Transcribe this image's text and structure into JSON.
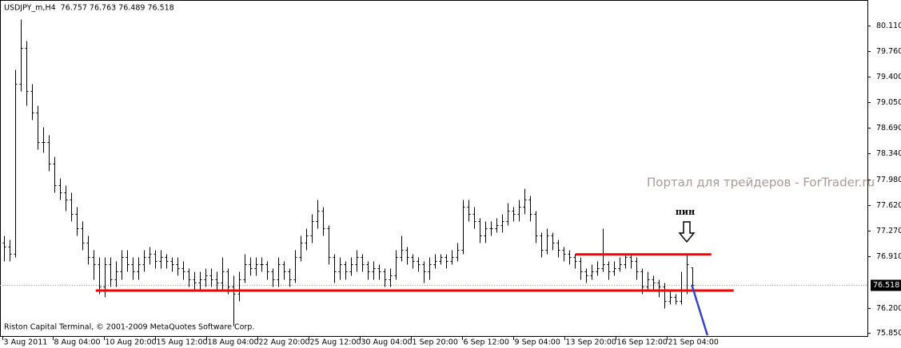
{
  "chart_data": {
    "type": "ohlc",
    "title": "USDJPY_m,H4  76.757 76.763 76.489 76.518",
    "color": "#000000",
    "open": [
      77.1,
      77.05,
      76.95,
      79.3,
      79.8,
      79.2,
      78.9,
      78.5,
      78.5,
      78.2,
      77.9,
      77.8,
      77.7,
      77.5,
      77.3,
      77.1,
      76.9,
      76.8,
      76.5,
      76.8,
      76.6,
      76.7,
      76.9,
      76.8,
      76.7,
      76.8,
      76.9,
      76.95,
      76.85,
      76.9,
      76.85,
      76.8,
      76.75,
      76.7,
      76.6,
      76.55,
      76.6,
      76.65,
      76.6,
      76.55,
      76.7,
      76.5,
      76.4,
      76.6,
      76.8,
      76.75,
      76.8,
      76.8,
      76.7,
      76.6,
      76.8,
      76.7,
      76.6,
      76.9,
      77.1,
      77.2,
      77.4,
      77.55,
      77.3,
      76.9,
      76.7,
      76.8,
      76.7,
      76.8,
      76.9,
      76.8,
      76.7,
      76.75,
      76.7,
      76.6,
      76.65,
      76.9,
      77.0,
      76.9,
      76.85,
      76.8,
      76.7,
      76.8,
      76.85,
      76.9,
      76.85,
      76.9,
      77.0,
      77.6,
      77.5,
      77.4,
      77.2,
      77.3,
      77.3,
      77.35,
      77.4,
      77.55,
      77.5,
      77.6,
      77.7,
      77.5,
      77.2,
      77.0,
      77.2,
      77.1,
      77.0,
      76.95,
      76.9,
      76.85,
      76.7,
      76.65,
      76.7,
      76.75,
      76.8,
      76.7,
      76.75,
      76.8,
      76.9,
      76.85,
      76.7,
      76.5,
      76.6,
      76.55,
      76.5,
      76.3,
      76.35,
      76.3,
      76.45,
      76.757
    ],
    "high": [
      77.2,
      77.15,
      79.5,
      80.2,
      79.9,
      79.3,
      79.0,
      78.7,
      78.6,
      78.3,
      78.0,
      77.9,
      77.8,
      77.6,
      77.4,
      77.2,
      77.0,
      76.9,
      76.9,
      76.9,
      76.85,
      77.0,
      77.0,
      76.9,
      76.9,
      77.0,
      77.05,
      77.0,
      77.0,
      76.95,
      76.9,
      76.9,
      76.85,
      76.75,
      76.7,
      76.7,
      76.75,
      76.75,
      76.7,
      76.9,
      76.75,
      76.65,
      76.7,
      76.95,
      76.9,
      76.9,
      76.9,
      76.85,
      76.75,
      76.9,
      76.85,
      76.75,
      77.0,
      77.2,
      77.3,
      77.5,
      77.7,
      77.6,
      77.35,
      76.95,
      76.9,
      76.85,
      76.9,
      77.0,
      76.95,
      76.85,
      76.85,
      76.8,
      76.75,
      76.75,
      77.0,
      77.2,
      77.05,
      76.95,
      76.9,
      76.85,
      76.9,
      76.95,
      76.95,
      76.95,
      77.0,
      77.1,
      77.7,
      77.7,
      77.6,
      77.45,
      77.4,
      77.4,
      77.45,
      77.5,
      77.65,
      77.6,
      77.7,
      77.85,
      77.75,
      77.55,
      77.25,
      77.3,
      77.25,
      77.15,
      77.05,
      77.0,
      76.95,
      76.9,
      76.75,
      76.8,
      76.85,
      77.3,
      76.85,
      76.85,
      76.9,
      76.95,
      76.95,
      76.9,
      76.75,
      76.7,
      76.65,
      76.6,
      76.55,
      76.45,
      76.4,
      76.7,
      76.95,
      76.763
    ],
    "low": [
      76.85,
      76.85,
      76.9,
      79.2,
      79.0,
      78.8,
      78.4,
      78.35,
      78.1,
      77.8,
      77.7,
      77.55,
      77.4,
      77.2,
      77.0,
      76.8,
      76.6,
      76.4,
      76.35,
      76.5,
      76.5,
      76.6,
      76.7,
      76.6,
      76.6,
      76.7,
      76.8,
      76.75,
      76.75,
      76.75,
      76.7,
      76.65,
      76.6,
      76.5,
      76.45,
      76.45,
      76.5,
      76.5,
      76.45,
      76.45,
      76.4,
      75.95,
      76.3,
      76.55,
      76.65,
      76.65,
      76.7,
      76.6,
      76.5,
      76.5,
      76.6,
      76.5,
      76.55,
      76.85,
      77.0,
      77.1,
      77.3,
      77.2,
      76.8,
      76.55,
      76.6,
      76.6,
      76.65,
      76.7,
      76.7,
      76.6,
      76.6,
      76.6,
      76.5,
      76.5,
      76.6,
      76.85,
      76.8,
      76.75,
      76.7,
      76.55,
      76.6,
      76.75,
      76.8,
      76.75,
      76.8,
      76.85,
      76.95,
      77.4,
      77.3,
      77.1,
      77.1,
      77.2,
      77.25,
      77.25,
      77.35,
      77.4,
      77.4,
      77.5,
      77.4,
      77.1,
      76.9,
      76.95,
      77.0,
      76.9,
      76.85,
      76.8,
      76.75,
      76.6,
      76.55,
      76.6,
      76.65,
      76.7,
      76.6,
      76.65,
      76.7,
      76.75,
      76.75,
      76.6,
      76.4,
      76.45,
      76.45,
      76.35,
      76.2,
      76.25,
      76.25,
      76.25,
      76.4,
      76.489
    ],
    "close": [
      77.05,
      76.95,
      79.3,
      79.8,
      79.2,
      78.9,
      78.5,
      78.5,
      78.2,
      77.9,
      77.8,
      77.7,
      77.5,
      77.3,
      77.1,
      76.9,
      76.8,
      76.5,
      76.8,
      76.6,
      76.7,
      76.9,
      76.8,
      76.7,
      76.8,
      76.9,
      76.95,
      76.85,
      76.9,
      76.85,
      76.8,
      76.75,
      76.7,
      76.6,
      76.55,
      76.6,
      76.65,
      76.6,
      76.55,
      76.7,
      76.5,
      76.4,
      76.6,
      76.8,
      76.75,
      76.8,
      76.8,
      76.7,
      76.6,
      76.8,
      76.7,
      76.6,
      76.9,
      77.1,
      77.2,
      77.4,
      77.55,
      77.3,
      76.9,
      76.7,
      76.8,
      76.7,
      76.8,
      76.9,
      76.8,
      76.7,
      76.75,
      76.7,
      76.6,
      76.65,
      76.9,
      77.0,
      76.9,
      76.85,
      76.8,
      76.7,
      76.8,
      76.85,
      76.9,
      76.85,
      76.9,
      77.0,
      77.6,
      77.5,
      77.4,
      77.2,
      77.3,
      77.3,
      77.35,
      77.4,
      77.55,
      77.5,
      77.6,
      77.7,
      77.5,
      77.2,
      77.0,
      77.2,
      77.1,
      77.0,
      76.95,
      76.9,
      76.85,
      76.7,
      76.65,
      76.7,
      76.75,
      76.8,
      76.7,
      76.75,
      76.8,
      76.9,
      76.85,
      76.7,
      76.5,
      76.6,
      76.55,
      76.5,
      76.3,
      76.35,
      76.3,
      76.45,
      76.8,
      76.518
    ],
    "xlim": [
      -0.71,
      154.29
    ],
    "xticks": [
      {
        "value": -0.29,
        "label": "3 Aug 2011"
      },
      {
        "value": 8.71,
        "label": "8 Aug 04:00"
      },
      {
        "value": 17.86,
        "label": "10 Aug 20:00"
      },
      {
        "value": 27.0,
        "label": "15 Aug 12:00"
      },
      {
        "value": 36.14,
        "label": "18 Aug 04:00"
      },
      {
        "value": 45.29,
        "label": "22 Aug 20:00"
      },
      {
        "value": 54.43,
        "label": "25 Aug 12:00"
      },
      {
        "value": 63.57,
        "label": "30 Aug 04:00"
      },
      {
        "value": 72.71,
        "label": "1 Sep 20:00"
      },
      {
        "value": 81.86,
        "label": "6 Sep 12:00"
      },
      {
        "value": 91.0,
        "label": "9 Sep 04:00"
      },
      {
        "value": 100.14,
        "label": "13 Sep 20:00"
      },
      {
        "value": 109.29,
        "label": "16 Sep 12:00"
      },
      {
        "value": 118.43,
        "label": "21 Sep 04:00"
      }
    ],
    "ylim": [
      75.81,
      80.44
    ],
    "yticks": [
      {
        "value": 80.11,
        "label": "80.110"
      },
      {
        "value": 79.76,
        "label": "79.760"
      },
      {
        "value": 79.4,
        "label": "79.400"
      },
      {
        "value": 79.05,
        "label": "79.050"
      },
      {
        "value": 78.69,
        "label": "78.690"
      },
      {
        "value": 78.34,
        "label": "78.340"
      },
      {
        "value": 77.98,
        "label": "77.980"
      },
      {
        "value": 77.62,
        "label": "77.620"
      },
      {
        "value": 77.27,
        "label": "77.270"
      },
      {
        "value": 76.91,
        "label": "76.910"
      },
      {
        "value": 76.2,
        "label": "76.200"
      },
      {
        "value": 75.85,
        "label": "75.850"
      }
    ],
    "current_price": 76.518,
    "levels": [
      {
        "value": 76.94,
        "from": 102.1,
        "to": 126.4,
        "color": "#ff0000"
      },
      {
        "value": 76.44,
        "from": 16.4,
        "to": 130.4,
        "color": "#ff0000"
      }
    ],
    "trend_line": {
      "x": [
        122.9,
        125.7
      ],
      "y": [
        76.52,
        75.82
      ],
      "color": "#3344cc"
    },
    "pin_label": "пин",
    "watermark": "Портал для трейдеров - ForTrader.ru",
    "footer": "Riston Capital Terminal, © 2001-2009 MetaQuotes Software Corp."
  }
}
